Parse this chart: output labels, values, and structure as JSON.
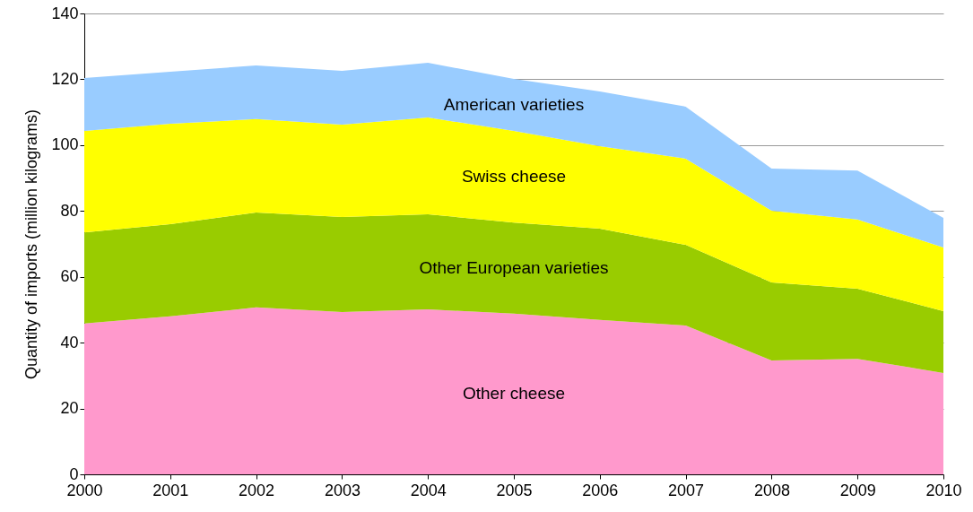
{
  "chart_data": {
    "type": "area",
    "stacked": true,
    "ylabel": "Quantity of imports (million  kilograms)",
    "x": [
      2000,
      2001,
      2002,
      2003,
      2004,
      2005,
      2006,
      2007,
      2008,
      2009,
      2010
    ],
    "series": [
      {
        "name": "Other cheese",
        "color": "#ff99cc",
        "values": [
          45.8,
          48,
          50.7,
          49.3,
          50.1,
          48.8,
          46.9,
          45.2,
          34.6,
          35.1,
          30.8
        ]
      },
      {
        "name": "Other European varieties",
        "color": "#99cc00",
        "values": [
          27.7,
          28,
          28.8,
          28.9,
          28.9,
          27.7,
          27.7,
          24.5,
          23.7,
          21.3,
          18.8
        ]
      },
      {
        "name": "Swiss cheese",
        "color": "#ffff00",
        "values": [
          30.8,
          30.5,
          28.4,
          28,
          29.4,
          27.8,
          25.1,
          26.2,
          21.8,
          21,
          19.3
        ]
      },
      {
        "name": "American varieties",
        "color": "#99ccff",
        "values": [
          16.1,
          15.8,
          16.3,
          16.4,
          16.6,
          15.8,
          16.6,
          15.8,
          12.8,
          14.9,
          9
        ]
      }
    ],
    "xlim": [
      2000,
      2010
    ],
    "xticks": [
      2000,
      2001,
      2002,
      2003,
      2004,
      2005,
      2006,
      2007,
      2008,
      2009,
      2010
    ],
    "ylim": [
      0,
      140
    ],
    "yticks": [
      0,
      20,
      40,
      60,
      80,
      100,
      120,
      140
    ],
    "grid": "y"
  }
}
